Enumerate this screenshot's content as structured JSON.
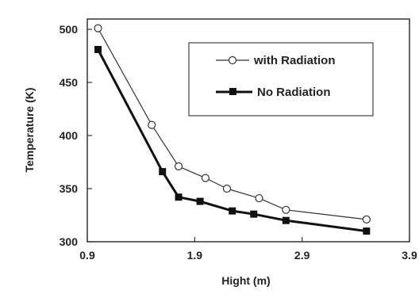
{
  "chart_data": {
    "type": "line",
    "xlabel": "Hight (m)",
    "ylabel": "Temperature (K)",
    "xlim": [
      0.9,
      3.9
    ],
    "ylim": [
      300,
      500
    ],
    "xticks": [
      "0.9",
      "1.9",
      "2.9",
      "3.9"
    ],
    "yticks": [
      "300",
      "350",
      "400",
      "450",
      "500"
    ],
    "legend_position": "top-right",
    "grid": false,
    "series": [
      {
        "name": "with Radiation",
        "marker": "open-circle",
        "color": "#333333",
        "x": [
          1.0,
          1.5,
          1.75,
          2.0,
          2.2,
          2.5,
          2.75,
          3.5
        ],
        "y": [
          501,
          410,
          371,
          360,
          350,
          341,
          330,
          321
        ]
      },
      {
        "name": "No Radiation",
        "marker": "filled-square",
        "color": "#111111",
        "x": [
          1.0,
          1.6,
          1.75,
          1.95,
          2.25,
          2.45,
          2.75,
          3.5
        ],
        "y": [
          481,
          366,
          342,
          338,
          329,
          326,
          320,
          310
        ]
      }
    ]
  }
}
